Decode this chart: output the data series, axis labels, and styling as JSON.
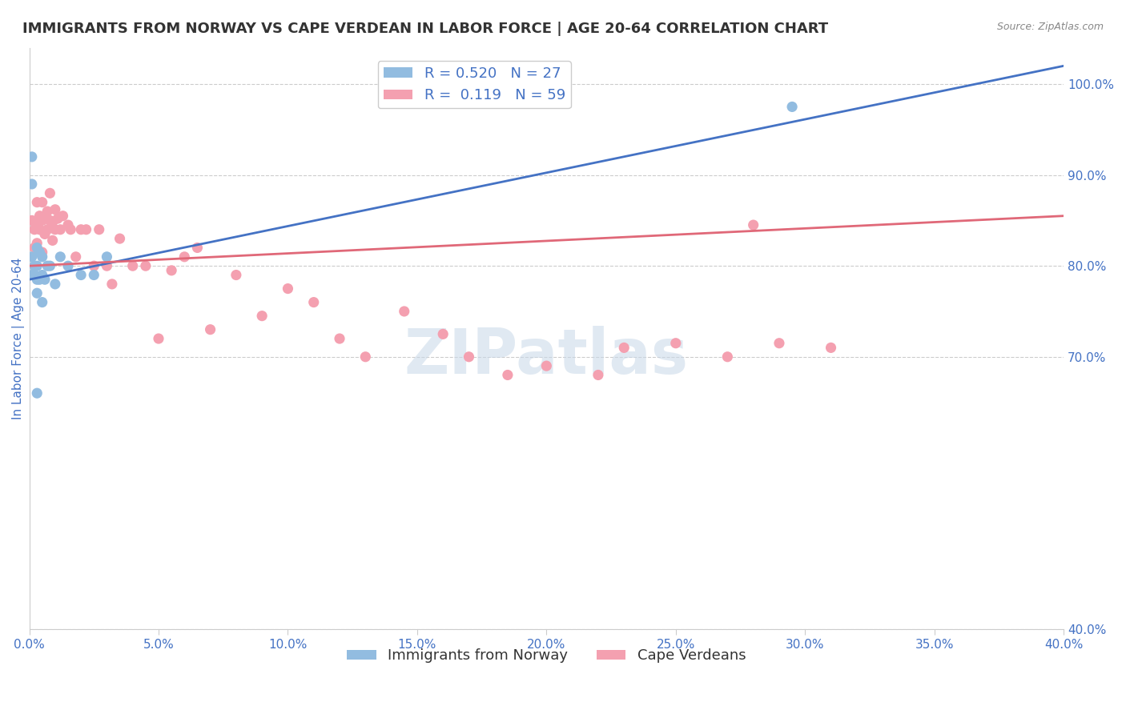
{
  "title": "IMMIGRANTS FROM NORWAY VS CAPE VERDEAN IN LABOR FORCE | AGE 20-64 CORRELATION CHART",
  "source": "Source: ZipAtlas.com",
  "ylabel": "In Labor Force | Age 20-64",
  "legend_norway": "Immigrants from Norway",
  "legend_cape": "Cape Verdeans",
  "norway_R": 0.52,
  "norway_N": 27,
  "cape_R": 0.119,
  "cape_N": 59,
  "norway_color": "#92bce0",
  "cape_color": "#f4a0b0",
  "norway_line_color": "#4472c4",
  "cape_line_color": "#e06878",
  "watermark": "ZIPatlas",
  "xlim": [
    0.0,
    0.4
  ],
  "ylim": [
    0.4,
    1.04
  ],
  "yticks": [
    1.0,
    0.9,
    0.8,
    0.7,
    0.4
  ],
  "xticks": [
    0.0,
    0.05,
    0.1,
    0.15,
    0.2,
    0.25,
    0.3,
    0.35,
    0.4
  ],
  "norway_x": [
    0.001,
    0.001,
    0.001,
    0.001,
    0.002,
    0.002,
    0.002,
    0.003,
    0.003,
    0.003,
    0.004,
    0.004,
    0.005,
    0.005,
    0.006,
    0.007,
    0.008,
    0.01,
    0.012,
    0.015,
    0.02,
    0.025,
    0.03,
    0.005,
    0.003,
    0.295,
    0.003
  ],
  "norway_y": [
    0.92,
    0.89,
    0.81,
    0.79,
    0.8,
    0.79,
    0.79,
    0.82,
    0.8,
    0.785,
    0.815,
    0.785,
    0.79,
    0.76,
    0.785,
    0.8,
    0.8,
    0.78,
    0.81,
    0.8,
    0.79,
    0.79,
    0.81,
    0.81,
    0.77,
    0.975,
    0.66
  ],
  "cape_x": [
    0.001,
    0.002,
    0.002,
    0.003,
    0.003,
    0.003,
    0.004,
    0.004,
    0.005,
    0.005,
    0.005,
    0.006,
    0.006,
    0.007,
    0.007,
    0.008,
    0.008,
    0.009,
    0.009,
    0.01,
    0.01,
    0.011,
    0.012,
    0.013,
    0.015,
    0.016,
    0.018,
    0.02,
    0.022,
    0.025,
    0.027,
    0.03,
    0.032,
    0.035,
    0.04,
    0.045,
    0.05,
    0.055,
    0.06,
    0.065,
    0.07,
    0.08,
    0.09,
    0.1,
    0.11,
    0.12,
    0.13,
    0.145,
    0.16,
    0.17,
    0.185,
    0.2,
    0.22,
    0.25,
    0.27,
    0.29,
    0.31,
    0.23,
    0.28
  ],
  "cape_y": [
    0.85,
    0.84,
    0.82,
    0.87,
    0.845,
    0.825,
    0.855,
    0.84,
    0.87,
    0.85,
    0.815,
    0.855,
    0.835,
    0.86,
    0.84,
    0.88,
    0.85,
    0.848,
    0.828,
    0.862,
    0.84,
    0.852,
    0.84,
    0.855,
    0.845,
    0.84,
    0.81,
    0.84,
    0.84,
    0.8,
    0.84,
    0.8,
    0.78,
    0.83,
    0.8,
    0.8,
    0.72,
    0.795,
    0.81,
    0.82,
    0.73,
    0.79,
    0.745,
    0.775,
    0.76,
    0.72,
    0.7,
    0.75,
    0.725,
    0.7,
    0.68,
    0.69,
    0.68,
    0.715,
    0.7,
    0.715,
    0.71,
    0.71,
    0.845
  ],
  "norway_line_x": [
    0.0,
    0.4
  ],
  "norway_line_y": [
    0.785,
    1.02
  ],
  "cape_line_x": [
    0.0,
    0.4
  ],
  "cape_line_y": [
    0.8,
    0.855
  ],
  "background_color": "#ffffff",
  "grid_color": "#cccccc",
  "axis_color": "#4472c4",
  "title_color": "#333333",
  "title_fontsize": 13,
  "label_fontsize": 11,
  "tick_fontsize": 11,
  "legend_fontsize": 13
}
